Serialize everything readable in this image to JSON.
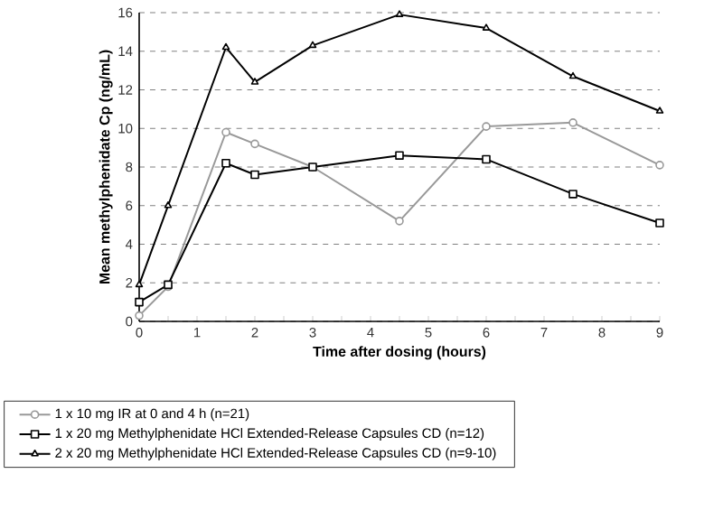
{
  "chart_data": {
    "type": "line",
    "xlabel": "Time after dosing (hours)",
    "ylabel": "Mean methylphenidate Cp (ng/mL)",
    "x": [
      0,
      0.5,
      1.5,
      2,
      3,
      4.5,
      6,
      7.5,
      9
    ],
    "series": [
      {
        "name": "1 x 10 mg IR at 0 and 4 h (n=21)",
        "color": "#999999",
        "marker": "circle",
        "values": [
          0.3,
          1.8,
          9.8,
          9.2,
          8.0,
          5.2,
          10.1,
          10.3,
          8.1
        ]
      },
      {
        "name": "1 x 20 mg  Methylphenidate HCl Extended-Release Capsules CD (n=12)",
        "color": "#000000",
        "marker": "square",
        "values": [
          1.0,
          1.9,
          8.2,
          7.6,
          8.0,
          8.6,
          8.4,
          6.6,
          5.1
        ]
      },
      {
        "name": "2 x 20 mg  Methylphenidate HCl Extended-Release Capsules CD (n=9-10)",
        "color": "#000000",
        "marker": "triangle",
        "values": [
          1.9,
          6.0,
          14.2,
          12.4,
          14.3,
          15.9,
          15.2,
          12.7,
          10.9
        ]
      }
    ],
    "xlim": [
      0,
      9
    ],
    "xticks": [
      0,
      {
        "value": 0.5,
        "label": null
      },
      1,
      {
        "value": 1.5,
        "label": null
      },
      2,
      {
        "value": 2.5,
        "label": null
      },
      3,
      {
        "value": 3.5,
        "label": null
      },
      4,
      {
        "value": 4.5,
        "label": null
      },
      5,
      {
        "value": 5.5,
        "label": null
      },
      6,
      {
        "value": 6.5,
        "label": null
      },
      7,
      {
        "value": 7.5,
        "label": null
      },
      8,
      {
        "value": 8.5,
        "label": null
      },
      9
    ],
    "ylim": [
      0,
      16
    ],
    "yticks": [
      0,
      2,
      4,
      6,
      8,
      10,
      12,
      14,
      16
    ],
    "grid": "y",
    "legend": "bottom"
  }
}
